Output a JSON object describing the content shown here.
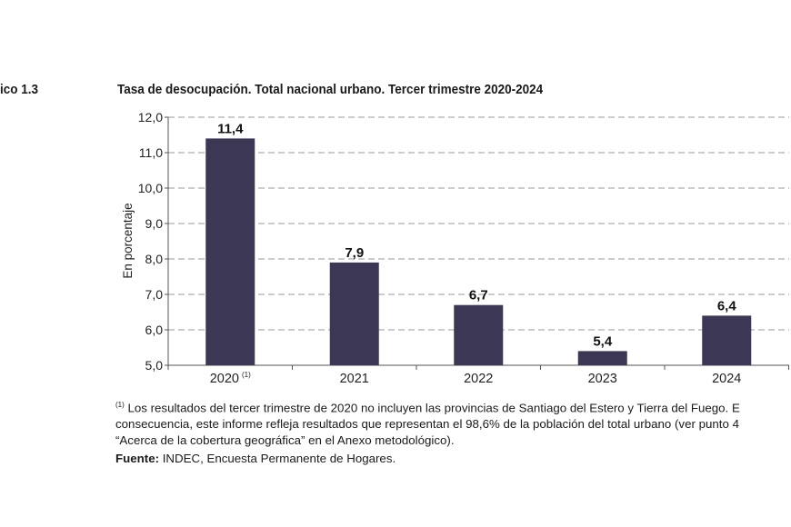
{
  "figure_label": "ico 1.3",
  "chart_data": {
    "type": "bar",
    "title": "Tasa de desocupación. Total nacional urbano. Tercer trimestre 2020-2024",
    "ylabel": "En porcentaje",
    "xlabel": "",
    "categories": [
      "2020",
      "2021",
      "2022",
      "2023",
      "2024"
    ],
    "category_superscripts": [
      "(1)",
      "",
      "",
      "",
      ""
    ],
    "values": [
      11.4,
      7.9,
      6.7,
      5.4,
      6.4
    ],
    "data_labels": [
      "11,4",
      "7,9",
      "6,7",
      "5,4",
      "6,4"
    ],
    "ylim": [
      5.0,
      12.0
    ],
    "yticks": [
      "5,0",
      "6,0",
      "7,0",
      "8,0",
      "9,0",
      "10,0",
      "11,0",
      "12,0"
    ],
    "grid": "dashed horizontal",
    "bar_color": "#3b3755"
  },
  "footnote": {
    "marker": "(1)",
    "lines": [
      " Los resultados del tercer trimestre de 2020 no incluyen las provincias de Santiago del Estero y Tierra del Fuego. E",
      "consecuencia, este informe refleja resultados que representan el 98,6% de la población del total urbano (ver punto 4",
      "“Acerca de la cobertura geográfica” en el Anexo metodológico)."
    ]
  },
  "source": {
    "label": "Fuente:",
    "text": " INDEC, Encuesta Permanente de Hogares."
  }
}
